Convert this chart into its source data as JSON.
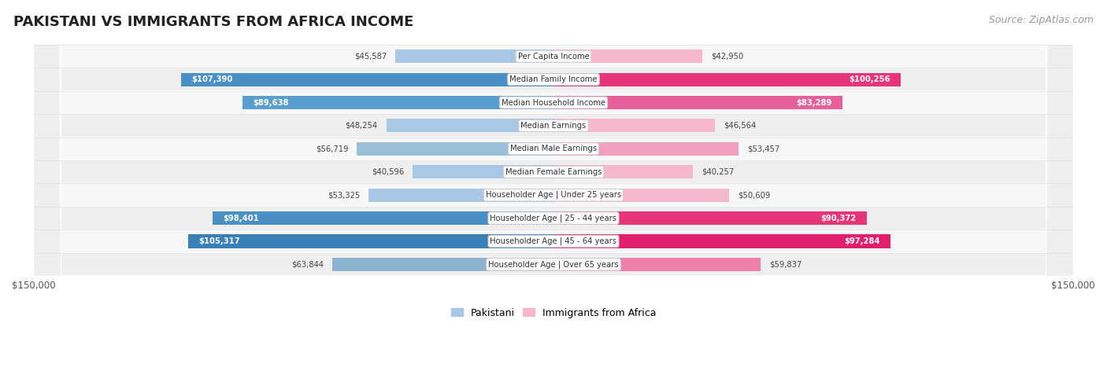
{
  "title": "PAKISTANI VS IMMIGRANTS FROM AFRICA INCOME",
  "source": "Source: ZipAtlas.com",
  "categories": [
    "Per Capita Income",
    "Median Family Income",
    "Median Household Income",
    "Median Earnings",
    "Median Male Earnings",
    "Median Female Earnings",
    "Householder Age | Under 25 years",
    "Householder Age | 25 - 44 years",
    "Householder Age | 45 - 64 years",
    "Householder Age | Over 65 years"
  ],
  "pakistani_values": [
    45587,
    107390,
    89638,
    48254,
    56719,
    40596,
    53325,
    98401,
    105317,
    63844
  ],
  "africa_values": [
    42950,
    100256,
    83289,
    46564,
    53457,
    40257,
    50609,
    90372,
    97284,
    59837
  ],
  "pakistani_colors": [
    "#a8c8e8",
    "#4a90c4",
    "#5a9ecf",
    "#a8c8e8",
    "#9bbfd8",
    "#a8c8e8",
    "#a8c8e8",
    "#4a90c4",
    "#3a80b8",
    "#8ab4d0"
  ],
  "africa_colors": [
    "#f5b8ce",
    "#e8357a",
    "#e8609a",
    "#f5b8ce",
    "#f0a0be",
    "#f5b8ce",
    "#f5b8ce",
    "#e8357a",
    "#e0206e",
    "#ee80aa"
  ],
  "pakistani_label": "Pakistani",
  "africa_label": "Immigrants from Africa",
  "row_bg_colors": [
    "#f7f7f7",
    "#efefef"
  ],
  "max_value": 150000,
  "x_label_left": "$150,000",
  "x_label_right": "$150,000",
  "title_fontsize": 13,
  "source_fontsize": 9,
  "bar_height": 0.58,
  "threshold_inside": 65000
}
